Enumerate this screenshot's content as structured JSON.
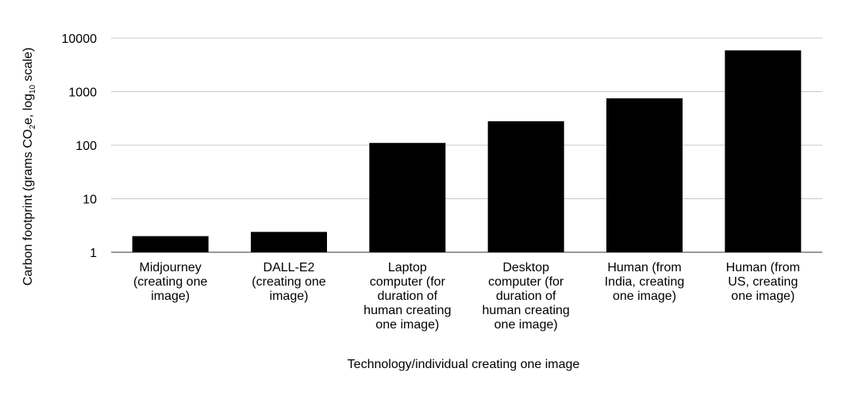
{
  "chart_data": {
    "type": "bar",
    "title": "",
    "xlabel": "Technology/individual creating one image",
    "ylabel": {
      "parts": [
        {
          "text": "Carbon footprint (grams CO",
          "style": "normal"
        },
        {
          "text": "2",
          "style": "sub"
        },
        {
          "text": "e, log",
          "style": "normal"
        },
        {
          "text": "10",
          "style": "sub"
        },
        {
          "text": " scale)",
          "style": "normal"
        }
      ]
    },
    "yscale": "log10",
    "ylim": [
      1,
      10000
    ],
    "yticks": [
      1,
      10,
      100,
      1000,
      10000
    ],
    "ytick_labels": [
      "1",
      "10",
      "100",
      "1000",
      "10000"
    ],
    "grid": true,
    "legend": "none",
    "bar_color": "#000000",
    "grid_color": "#c8c8c8",
    "categories": [
      [
        "Midjourney",
        "(creating one",
        "image)"
      ],
      [
        "DALL-E2",
        "(creating one",
        "image)"
      ],
      [
        "Laptop",
        "computer (for",
        "duration of",
        "human creating",
        "one image)"
      ],
      [
        "Desktop",
        "computer (for",
        "duration of",
        "human creating",
        "one image)"
      ],
      [
        "Human (from",
        "India, creating",
        "one image)"
      ],
      [
        "Human (from",
        "US, creating",
        "one image)"
      ]
    ],
    "values": [
      2.0,
      2.4,
      110,
      280,
      750,
      5900
    ]
  }
}
